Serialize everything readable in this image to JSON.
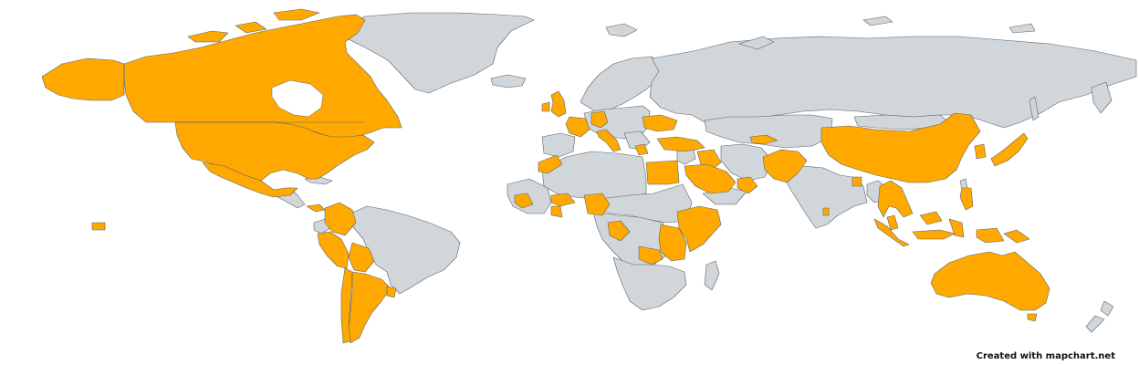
{
  "colors": {
    "highlight": "#ffa900",
    "land": "#d0d6d9",
    "border": "#5f6368",
    "ocean": "#ffffff"
  },
  "credit": "Created with mapchart.net",
  "highlighted_countries": [
    "United States",
    "Canada",
    "Mexico",
    "Panama",
    "Colombia",
    "Peru",
    "Bolivia",
    "Chile",
    "Argentina",
    "Uruguay",
    "United Kingdom",
    "Ireland",
    "France",
    "Germany",
    "Italy",
    "Greece",
    "Ukraine",
    "Turkey",
    "Egypt",
    "Saudi Arabia",
    "Oman",
    "Iraq",
    "Afghanistan",
    "Pakistan",
    "Armenia",
    "Azerbaijan",
    "Morocco",
    "Sierra Leone",
    "Liberia",
    "Burkina Faso",
    "Ghana",
    "Nigeria",
    "Democratic Republic of the Congo",
    "Ethiopia",
    "Somalia",
    "Kenya",
    "Uganda",
    "Tanzania",
    "Zambia",
    "China",
    "Japan",
    "South Korea",
    "Bangladesh",
    "Sri Lanka",
    "Thailand",
    "Cambodia",
    "Vietnam",
    "Malaysia",
    "Indonesia",
    "Philippines",
    "Papua New Guinea",
    "Australia",
    "Hawaii (US)"
  ]
}
